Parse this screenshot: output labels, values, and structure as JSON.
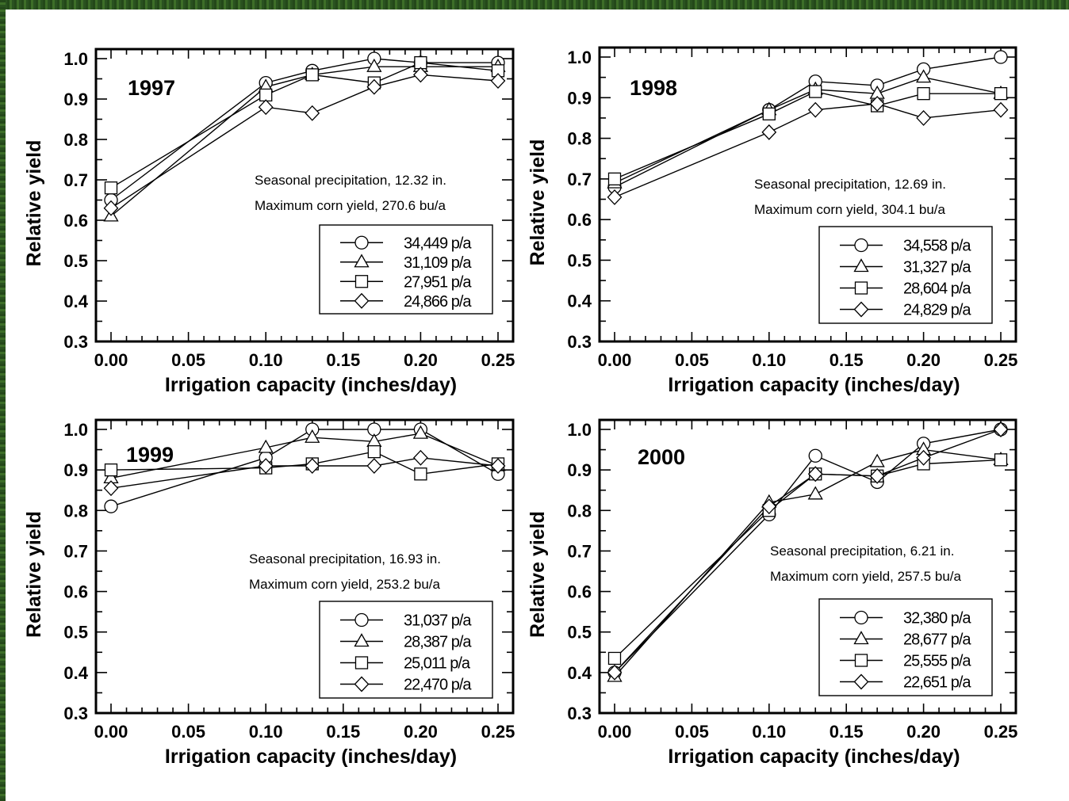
{
  "figure": {
    "x_ticks": [
      "0.00",
      "0.05",
      "0.10",
      "0.15",
      "0.20",
      "0.25"
    ],
    "y_ticks": [
      "0.3",
      "0.4",
      "0.5",
      "0.6",
      "0.7",
      "0.8",
      "0.9",
      "1.0"
    ]
  },
  "chart_data": [
    {
      "type": "line",
      "title": "1997",
      "xlabel": "Irrigation capacity (inches/day)",
      "ylabel": "Relative yield",
      "xlim": [
        0,
        0.25
      ],
      "ylim": [
        0.3,
        1.0
      ],
      "annotations": [
        "Seasonal precipitation, 12.32 in.",
        "Maximum corn yield, 270.6 bu/a"
      ],
      "legend_position": "bottom-right",
      "x": [
        0.0,
        0.1,
        0.13,
        0.17,
        0.2,
        0.25
      ],
      "series": [
        {
          "name": "34,449 p/a",
          "marker": "circle",
          "values": [
            0.65,
            0.94,
            0.97,
            1.0,
            0.99,
            0.99
          ]
        },
        {
          "name": "31,109 p/a",
          "marker": "triangle",
          "values": [
            0.61,
            0.93,
            0.96,
            0.98,
            0.98,
            0.98
          ]
        },
        {
          "name": "27,951 p/a",
          "marker": "square",
          "values": [
            0.68,
            0.91,
            0.96,
            0.94,
            0.99,
            0.97
          ]
        },
        {
          "name": "24,866 p/a",
          "marker": "diamond",
          "values": [
            0.63,
            0.88,
            0.865,
            0.93,
            0.96,
            0.945
          ]
        }
      ]
    },
    {
      "type": "line",
      "title": "1998",
      "xlabel": "Irrigation capacity (inches/day)",
      "ylabel": "Relative yield",
      "xlim": [
        0,
        0.25
      ],
      "ylim": [
        0.3,
        1.0
      ],
      "annotations": [
        "Seasonal precipitation, 12.69 in.",
        "Maximum corn yield, 304.1 bu/a"
      ],
      "legend_position": "bottom-right",
      "x": [
        0.0,
        0.1,
        0.13,
        0.17,
        0.2,
        0.25
      ],
      "series": [
        {
          "name": "34,558 p/a",
          "marker": "circle",
          "values": [
            0.68,
            0.87,
            0.94,
            0.93,
            0.97,
            1.0
          ]
        },
        {
          "name": "31,327 p/a",
          "marker": "triangle",
          "values": [
            0.69,
            0.87,
            0.92,
            0.91,
            0.95,
            0.91
          ]
        },
        {
          "name": "28,604 p/a",
          "marker": "square",
          "values": [
            0.7,
            0.86,
            0.915,
            0.88,
            0.91,
            0.91
          ]
        },
        {
          "name": "24,829 p/a",
          "marker": "diamond",
          "values": [
            0.655,
            0.815,
            0.87,
            0.885,
            0.85,
            0.87
          ]
        }
      ]
    },
    {
      "type": "line",
      "title": "1999",
      "xlabel": "Irrigation capacity (inches/day)",
      "ylabel": "Relative yield",
      "xlim": [
        0,
        0.25
      ],
      "ylim": [
        0.3,
        1.0
      ],
      "annotations": [
        "Seasonal precipitation, 16.93 in.",
        "Maximum corn yield, 253.2 bu/a"
      ],
      "legend_position": "bottom-right",
      "x": [
        0.0,
        0.1,
        0.13,
        0.17,
        0.2,
        0.25
      ],
      "series": [
        {
          "name": "31,037 p/a",
          "marker": "circle",
          "values": [
            0.81,
            0.93,
            1.0,
            1.0,
            1.0,
            0.89
          ]
        },
        {
          "name": "28,387 p/a",
          "marker": "triangle",
          "values": [
            0.88,
            0.955,
            0.98,
            0.97,
            0.99,
            0.91
          ]
        },
        {
          "name": "25,011 p/a",
          "marker": "square",
          "values": [
            0.9,
            0.905,
            0.915,
            0.945,
            0.89,
            0.915
          ]
        },
        {
          "name": "22,470 p/a",
          "marker": "diamond",
          "values": [
            0.855,
            0.91,
            0.91,
            0.91,
            0.93,
            0.91
          ]
        }
      ]
    },
    {
      "type": "line",
      "title": "2000",
      "xlabel": "Irrigation capacity (inches/day)",
      "ylabel": "Relative yield",
      "xlim": [
        0,
        0.25
      ],
      "ylim": [
        0.3,
        1.0
      ],
      "annotations": [
        "Seasonal precipitation, 6.21 in.",
        "Maximum corn yield, 257.5 bu/a"
      ],
      "legend_position": "bottom-right",
      "x": [
        0.0,
        0.1,
        0.13,
        0.17,
        0.2,
        0.25
      ],
      "series": [
        {
          "name": "32,380 p/a",
          "marker": "circle",
          "values": [
            0.4,
            0.79,
            0.935,
            0.87,
            0.965,
            1.0
          ]
        },
        {
          "name": "28,677 p/a",
          "marker": "triangle",
          "values": [
            0.39,
            0.82,
            0.84,
            0.92,
            0.95,
            0.925
          ]
        },
        {
          "name": "25,555 p/a",
          "marker": "square",
          "values": [
            0.435,
            0.8,
            0.89,
            0.885,
            0.915,
            0.925
          ]
        },
        {
          "name": "22,651 p/a",
          "marker": "diamond",
          "values": [
            0.4,
            0.81,
            0.89,
            0.885,
            0.93,
            1.0
          ]
        }
      ]
    }
  ]
}
